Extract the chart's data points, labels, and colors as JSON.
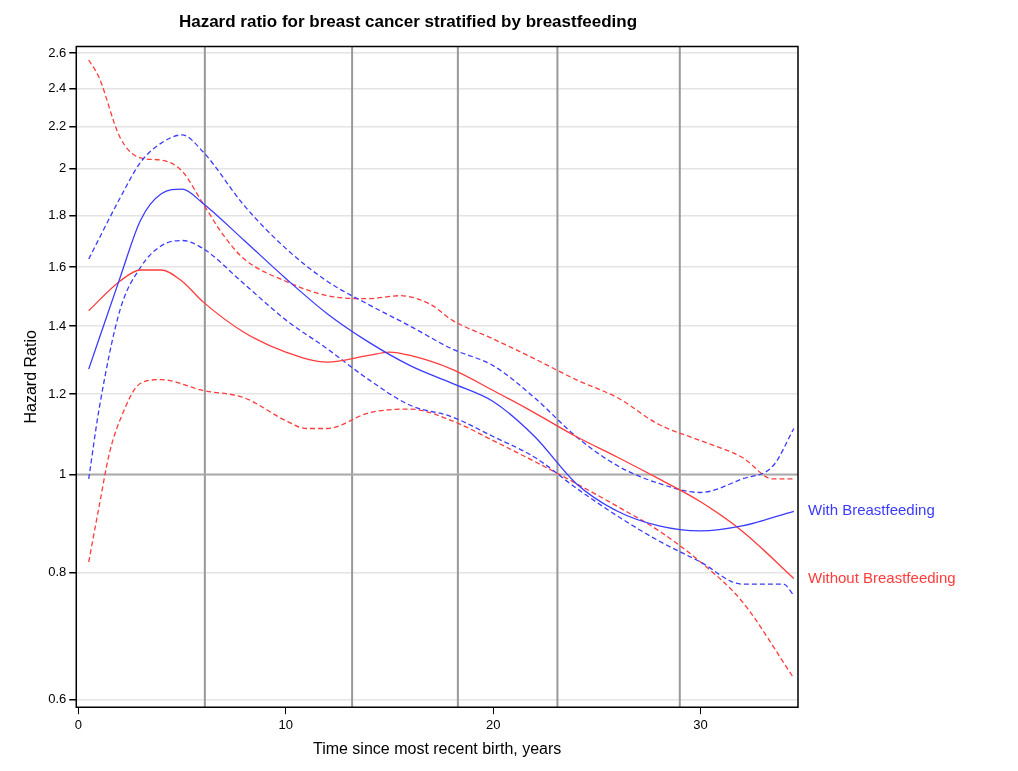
{
  "chart_data": {
    "type": "line",
    "title": "Hazard ratio for breast cancer stratified by breastfeeding",
    "xlabel": "Time since most recent birth, years",
    "ylabel": "Hazard Ratio",
    "log": "y",
    "grid": "y",
    "legend": false,
    "xlim": [
      -0.1,
      34.7
    ],
    "xticks": [
      0,
      10,
      20,
      30
    ],
    "ylim": [
      0.59,
      2.64
    ],
    "yticks": [
      0.6,
      0.8,
      1,
      1.2,
      1.4,
      1.6,
      1.8,
      2,
      2.2,
      2.4,
      2.6
    ],
    "ref_lines": [
      {
        "axis": "x",
        "value": 6.1,
        "color": "#999999"
      },
      {
        "axis": "x",
        "value": 13.2,
        "color": "#999999"
      },
      {
        "axis": "x",
        "value": 18.3,
        "color": "#999999"
      },
      {
        "axis": "x",
        "value": 23.1,
        "color": "#999999"
      },
      {
        "axis": "x",
        "value": 29.0,
        "color": "#999999"
      },
      {
        "axis": "y",
        "value": 1,
        "color": "#aaaaaa"
      }
    ],
    "series": [
      {
        "name": "With Breastfeeding",
        "color": "#3b3bff",
        "line_style": "solid",
        "x": [
          0.5,
          2,
          3,
          4,
          5,
          6,
          8,
          10,
          12,
          14,
          16,
          18,
          20,
          22,
          24,
          26,
          28,
          30,
          32,
          34.5
        ],
        "values": [
          1.27,
          1.56,
          1.78,
          1.89,
          1.91,
          1.85,
          1.7,
          1.56,
          1.44,
          1.35,
          1.28,
          1.23,
          1.18,
          1.09,
          0.98,
          0.92,
          0.89,
          0.88,
          0.89,
          0.92
        ]
      },
      {
        "name": "Without Breastfeeding",
        "color": "#ff3b3b",
        "line_style": "solid",
        "x": [
          0.5,
          2,
          3,
          4,
          5,
          6,
          8,
          10,
          12,
          14,
          15,
          16,
          18,
          20,
          22,
          24,
          26,
          28,
          30,
          32,
          34.5
        ],
        "values": [
          1.45,
          1.55,
          1.59,
          1.59,
          1.55,
          1.48,
          1.38,
          1.32,
          1.29,
          1.31,
          1.32,
          1.31,
          1.27,
          1.21,
          1.15,
          1.09,
          1.04,
          0.99,
          0.94,
          0.88,
          0.79
        ]
      },
      {
        "color": "#3b3bff",
        "line_style": "dashed",
        "x": [
          0.5,
          2,
          3,
          4,
          5,
          6,
          8,
          10,
          12,
          14,
          16,
          18,
          20,
          22,
          24,
          26,
          28,
          30,
          32,
          33.5,
          34.5
        ],
        "values": [
          1.63,
          1.87,
          2.03,
          2.12,
          2.16,
          2.08,
          1.84,
          1.67,
          1.55,
          1.47,
          1.4,
          1.33,
          1.28,
          1.19,
          1.09,
          1.02,
          0.98,
          0.96,
          0.99,
          1.02,
          1.11
        ]
      },
      {
        "color": "#3b3bff",
        "line_style": "dashed",
        "x": [
          0.5,
          1,
          2,
          3,
          4,
          5,
          6,
          8,
          10,
          12,
          14,
          16,
          18,
          20,
          22,
          24,
          26,
          28,
          30,
          32,
          34,
          34.5
        ],
        "values": [
          0.99,
          1.16,
          1.45,
          1.6,
          1.68,
          1.7,
          1.67,
          1.54,
          1.42,
          1.33,
          1.24,
          1.17,
          1.14,
          1.09,
          1.04,
          0.97,
          0.91,
          0.86,
          0.82,
          0.78,
          0.78,
          0.76
        ]
      },
      {
        "color": "#ff3b3b",
        "line_style": "dashed",
        "x": [
          0.5,
          1,
          2,
          3,
          4,
          5,
          6,
          7,
          8,
          10,
          12,
          14,
          15.5,
          17,
          18,
          20,
          22,
          24,
          26,
          28,
          30,
          32,
          33.5,
          34.5
        ],
        "values": [
          2.56,
          2.46,
          2.15,
          2.05,
          2.04,
          1.99,
          1.85,
          1.72,
          1.63,
          1.55,
          1.5,
          1.49,
          1.5,
          1.47,
          1.42,
          1.36,
          1.3,
          1.24,
          1.19,
          1.12,
          1.08,
          1.04,
          0.99,
          0.99
        ]
      },
      {
        "color": "#ff3b3b",
        "line_style": "dashed",
        "x": [
          0.5,
          1,
          1.5,
          2,
          3,
          4,
          6,
          8,
          10,
          11,
          12,
          14,
          16,
          18,
          20,
          22,
          24,
          26,
          28,
          30,
          32,
          34.5
        ],
        "values": [
          0.82,
          0.93,
          1.05,
          1.13,
          1.23,
          1.24,
          1.21,
          1.19,
          1.13,
          1.11,
          1.11,
          1.15,
          1.16,
          1.13,
          1.08,
          1.03,
          0.98,
          0.93,
          0.88,
          0.82,
          0.75,
          0.63
        ]
      }
    ]
  }
}
